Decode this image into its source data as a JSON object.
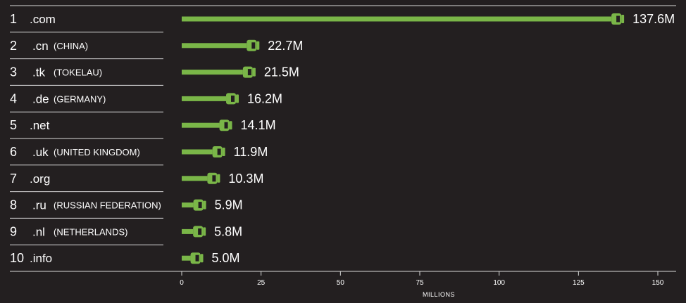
{
  "chart_data": {
    "type": "bar",
    "xlabel": "MILLIONS",
    "xlim": [
      0,
      150
    ],
    "x_ticks": [
      "0",
      "25",
      "50",
      "75",
      "100",
      "125",
      "150"
    ],
    "bar_color": "#7ab648",
    "background_color": "#231f20",
    "items": [
      {
        "rank": "1",
        "tld": ".com",
        "country": "",
        "value": 137.6,
        "value_label": "137.6M"
      },
      {
        "rank": "2",
        "tld": ".cn",
        "country": "(CHINA)",
        "value": 22.7,
        "value_label": "22.7M"
      },
      {
        "rank": "3",
        "tld": ".tk",
        "country": "(TOKELAU)",
        "value": 21.5,
        "value_label": "21.5M"
      },
      {
        "rank": "4",
        "tld": ".de",
        "country": "(GERMANY)",
        "value": 16.2,
        "value_label": "16.2M"
      },
      {
        "rank": "5",
        "tld": ".net",
        "country": "",
        "value": 14.1,
        "value_label": "14.1M"
      },
      {
        "rank": "6",
        "tld": ".uk",
        "country": "(UNITED KINGDOM)",
        "value": 11.9,
        "value_label": "11.9M"
      },
      {
        "rank": "7",
        "tld": ".org",
        "country": "",
        "value": 10.3,
        "value_label": "10.3M"
      },
      {
        "rank": "8",
        "tld": ".ru",
        "country": "(RUSSIAN FEDERATION)",
        "value": 5.9,
        "value_label": "5.9M"
      },
      {
        "rank": "9",
        "tld": ".nl",
        "country": "(NETHERLANDS)",
        "value": 5.8,
        "value_label": "5.8M"
      },
      {
        "rank": "10",
        "tld": ".info",
        "country": "",
        "value": 5.0,
        "value_label": "5.0M"
      }
    ]
  }
}
